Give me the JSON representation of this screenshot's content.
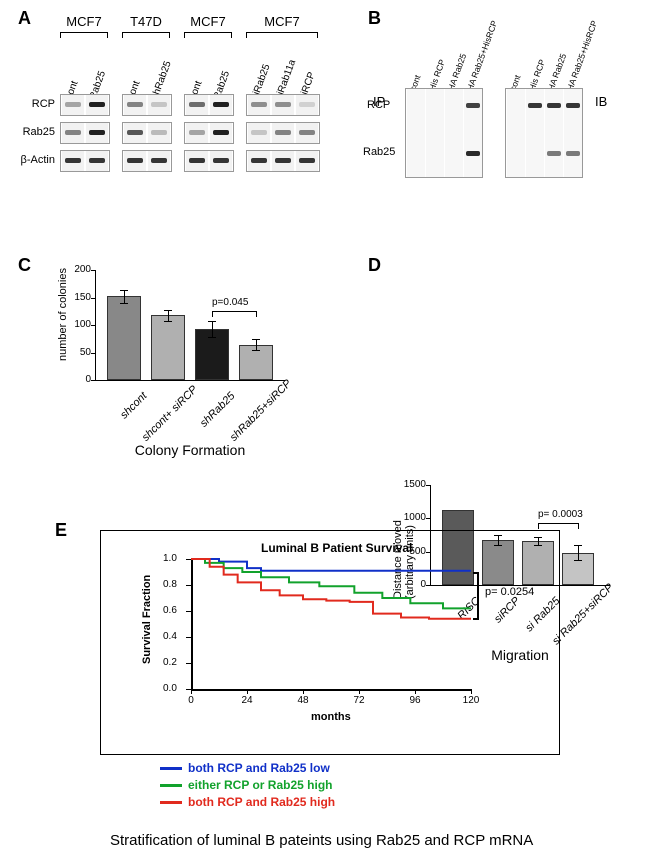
{
  "panelA": {
    "label": "A",
    "groups": [
      {
        "name": "MCF7",
        "lanes": [
          "cont",
          "Rab25"
        ]
      },
      {
        "name": "T47D",
        "lanes": [
          "cont",
          "shRab25"
        ]
      },
      {
        "name": "MCF7",
        "lanes": [
          "cont",
          "Rab25"
        ]
      },
      {
        "name": "MCF7",
        "lanes": [
          "siRab25",
          "siRab11a",
          "siRCP"
        ]
      }
    ],
    "row_labels": [
      "RCP",
      "Rab25",
      "β-Actin"
    ]
  },
  "panelB": {
    "label": "B",
    "ip_label": "IP",
    "ib_label": "IB",
    "lanes": [
      "cont",
      "His RCP",
      "HA Rab25",
      "HA Rab25+HisRCP"
    ],
    "row_labels": [
      "RCP",
      "Rab25"
    ]
  },
  "panelC": {
    "label": "C",
    "title": "Colony Formation",
    "y_label": "number of colonies",
    "y_max": 200,
    "y_step": 50,
    "p_text": "p=0.045",
    "bars": [
      {
        "label": "shcont",
        "value": 152,
        "err": 12,
        "color": "#888888"
      },
      {
        "label": "shcont+ siRCP",
        "value": 118,
        "err": 10,
        "color": "#b0b0b0"
      },
      {
        "label": "shRab25",
        "value": 93,
        "err": 15,
        "color": "#1b1b1b"
      },
      {
        "label": "shRab25+siRCP",
        "value": 64,
        "err": 10,
        "color": "#b0b0b0"
      }
    ]
  },
  "panelD": {
    "label": "D",
    "title": "Migration",
    "y_label": "Distance moved\n(arbitrary units)",
    "y_max": 1500,
    "y_step": 500,
    "p_text": "p= 0.0003",
    "bars": [
      {
        "label": "RISC",
        "value": 1120,
        "err": 0,
        "color": "#5a5a5a"
      },
      {
        "label": "siRCP",
        "value": 675,
        "err": 70,
        "color": "#8a8a8a"
      },
      {
        "label": "si Rab25",
        "value": 660,
        "err": 60,
        "color": "#b0b0b0"
      },
      {
        "label": "si Rab25+siRCP",
        "value": 485,
        "err": 110,
        "color": "#c4c4c4"
      }
    ]
  },
  "panelE": {
    "label": "E",
    "title": "Luminal B Patient Survival",
    "x_label": "months",
    "y_label": "Survival Fraction",
    "p_text": "p= 0.0254",
    "x_ticks": [
      0,
      24,
      48,
      72,
      96,
      120
    ],
    "y_ticks": [
      "0.0",
      "0.2",
      "0.4",
      "0.6",
      "0.8",
      "1.0"
    ],
    "legend": [
      {
        "label": "both RCP and Rab25 low",
        "color": "#1030c8"
      },
      {
        "label": "either RCP or Rab25 high",
        "color": "#12a22c"
      },
      {
        "label": "both RCP and Rab25 high",
        "color": "#e12a1e"
      }
    ],
    "curves": {
      "blue": [
        [
          0,
          1.0
        ],
        [
          12,
          0.98
        ],
        [
          24,
          0.93
        ],
        [
          30,
          0.91
        ],
        [
          48,
          0.91
        ],
        [
          72,
          0.91
        ],
        [
          96,
          0.91
        ],
        [
          120,
          0.91
        ]
      ],
      "green": [
        [
          0,
          1.0
        ],
        [
          6,
          0.97
        ],
        [
          14,
          0.93
        ],
        [
          22,
          0.9
        ],
        [
          30,
          0.86
        ],
        [
          42,
          0.82
        ],
        [
          55,
          0.79
        ],
        [
          70,
          0.74
        ],
        [
          82,
          0.7
        ],
        [
          94,
          0.66
        ],
        [
          108,
          0.62
        ],
        [
          120,
          0.62
        ]
      ],
      "red": [
        [
          0,
          1.0
        ],
        [
          8,
          0.94
        ],
        [
          14,
          0.88
        ],
        [
          20,
          0.82
        ],
        [
          30,
          0.76
        ],
        [
          38,
          0.72
        ],
        [
          48,
          0.69
        ],
        [
          58,
          0.68
        ],
        [
          68,
          0.67
        ],
        [
          78,
          0.58
        ],
        [
          90,
          0.55
        ],
        [
          102,
          0.54
        ],
        [
          120,
          0.54
        ]
      ]
    },
    "caption": "Stratification of luminal B pateints using Rab25 and RCP mRNA"
  }
}
